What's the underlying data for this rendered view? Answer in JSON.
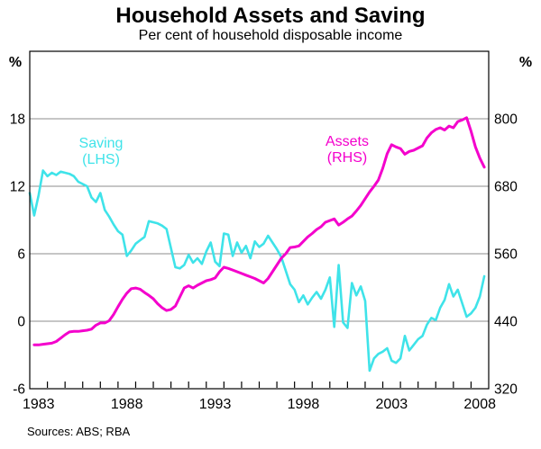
{
  "header": {
    "title": "Household Assets and Saving",
    "subtitle": "Per cent of household disposable income"
  },
  "footer": {
    "sources": "Sources: ABS; RBA"
  },
  "colors": {
    "saving": "#3FE3E9",
    "assets": "#F400CC",
    "grid": "#8C8C8C",
    "frame": "#000000",
    "text": "#000000"
  },
  "chart_data": {
    "type": "line",
    "title": "Household Assets and Saving",
    "subtitle": "Per cent of household disposable income",
    "grid": true,
    "legend_position": "inside-plot",
    "legend": [
      {
        "label": "Saving",
        "sub": "(LHS)",
        "series": "Saving"
      },
      {
        "label": "Assets",
        "sub": "(RHS)",
        "series": "Assets"
      }
    ],
    "x_axis": {
      "range": [
        1982.5,
        2008.5
      ],
      "minor_tick_years": 1,
      "labeled_years": [
        1983,
        1988,
        1993,
        1998,
        2003,
        2008
      ]
    },
    "left_axis": {
      "unit": "%",
      "range": [
        -6,
        24
      ],
      "tick_labels": [
        18,
        12,
        6,
        0,
        -6
      ],
      "gridline_values": [
        0,
        6,
        12,
        18
      ]
    },
    "right_axis": {
      "unit": "%",
      "range": [
        320,
        920
      ],
      "tick_labels": [
        800,
        680,
        560,
        440,
        320
      ]
    },
    "series": [
      {
        "name": "Saving",
        "axis": "left",
        "color_key": "saving",
        "line_width": 2.6,
        "x_start": 1982.5,
        "x_step": 0.25,
        "values": [
          11.4,
          9.4,
          11.2,
          13.4,
          12.9,
          13.2,
          13.0,
          13.3,
          13.2,
          13.1,
          12.9,
          12.4,
          12.2,
          12.0,
          11.0,
          10.6,
          11.4,
          9.9,
          9.3,
          8.6,
          8.0,
          7.7,
          5.8,
          6.3,
          6.9,
          7.2,
          7.5,
          8.9,
          8.8,
          8.7,
          8.5,
          8.2,
          6.5,
          4.8,
          4.7,
          5.0,
          5.9,
          5.2,
          5.6,
          5.1,
          6.2,
          7.0,
          5.3,
          4.9,
          7.8,
          7.7,
          5.8,
          7.0,
          6.1,
          6.7,
          5.6,
          7.1,
          6.6,
          6.9,
          7.6,
          7.0,
          6.4,
          5.7,
          4.5,
          3.3,
          2.8,
          1.7,
          2.3,
          1.5,
          2.1,
          2.6,
          2.0,
          2.8,
          3.9,
          -0.5,
          5.0,
          -0.1,
          -0.6,
          3.4,
          2.3,
          3.1,
          1.8,
          -4.4,
          -3.3,
          -2.9,
          -2.7,
          -2.4,
          -3.5,
          -3.7,
          -3.3,
          -1.3,
          -2.6,
          -2.1,
          -1.6,
          -1.3,
          -0.3,
          0.3,
          0.1,
          1.2,
          1.9,
          3.3,
          2.2,
          2.8,
          1.6,
          0.4,
          0.7,
          1.2,
          2.2,
          4.0
        ]
      },
      {
        "name": "Assets",
        "axis": "right",
        "color_key": "assets",
        "line_width": 3,
        "x_start": 1982.75,
        "x_step": 0.25,
        "values": [
          398,
          398,
          399,
          400,
          401,
          404,
          410,
          416,
          421,
          422,
          422,
          423,
          424,
          426,
          433,
          437,
          437,
          441,
          452,
          466,
          479,
          490,
          498,
          499,
          497,
          491,
          486,
          480,
          471,
          464,
          459,
          461,
          467,
          483,
          499,
          503,
          499,
          504,
          508,
          512,
          514,
          517,
          528,
          536,
          534,
          531,
          528,
          525,
          522,
          519,
          516,
          512,
          508,
          516,
          528,
          540,
          552,
          560,
          571,
          572,
          574,
          582,
          590,
          596,
          603,
          608,
          616,
          619,
          622,
          611,
          616,
          622,
          627,
          636,
          646,
          658,
          670,
          680,
          691,
          712,
          738,
          754,
          750,
          747,
          737,
          742,
          744,
          748,
          752,
          766,
          775,
          781,
          784,
          780,
          787,
          784,
          795,
          798,
          802,
          778,
          750,
          730,
          714
        ]
      }
    ]
  }
}
